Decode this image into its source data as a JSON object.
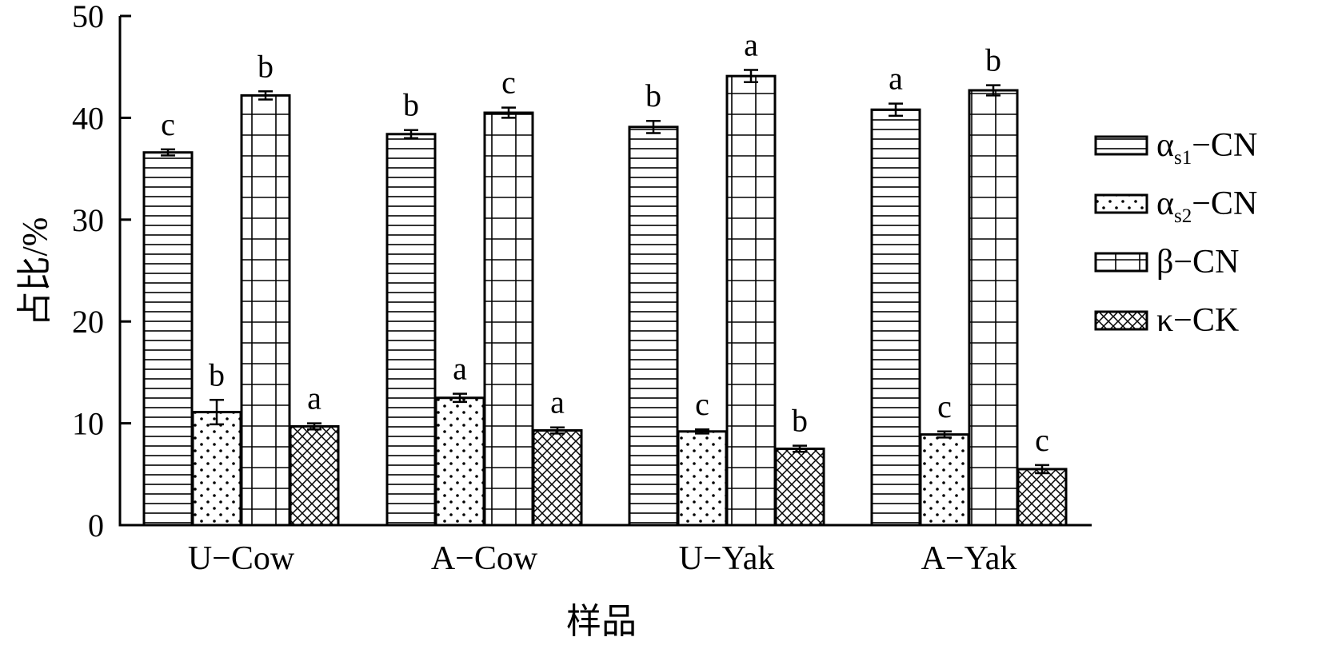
{
  "chart_data": {
    "type": "bar",
    "title": "",
    "xlabel": "样品",
    "ylabel": "占比/%",
    "ylim": [
      0,
      50
    ],
    "yticks": [
      0,
      10,
      20,
      30,
      40,
      50
    ],
    "grid": false,
    "legend_position": "right",
    "categories": [
      "U−Cow",
      "A−Cow",
      "U−Yak",
      "A−Yak"
    ],
    "series": [
      {
        "name": "α s1 −CN",
        "legend": {
          "main": "α",
          "sub": "s1",
          "rest": "−CN"
        },
        "pattern": "horizontal-lines",
        "values": [
          36.6,
          38.4,
          39.1,
          40.8
        ],
        "errors": [
          0.3,
          0.4,
          0.6,
          0.6
        ],
        "letters": [
          "c",
          "b",
          "b",
          "a"
        ]
      },
      {
        "name": "α s2 −CN",
        "legend": {
          "main": "α",
          "sub": "s2",
          "rest": "−CN"
        },
        "pattern": "dots",
        "values": [
          11.1,
          12.5,
          9.2,
          8.9
        ],
        "errors": [
          1.2,
          0.4,
          0.2,
          0.3
        ],
        "letters": [
          "b",
          "a",
          "c",
          "c"
        ]
      },
      {
        "name": "β−CN",
        "legend": {
          "main": "β−CN",
          "sub": "",
          "rest": ""
        },
        "pattern": "grid",
        "values": [
          42.2,
          40.5,
          44.1,
          42.7
        ],
        "errors": [
          0.4,
          0.5,
          0.6,
          0.5
        ],
        "letters": [
          "b",
          "c",
          "a",
          "b"
        ]
      },
      {
        "name": "κ−CK",
        "legend": {
          "main": "κ−CK",
          "sub": "",
          "rest": ""
        },
        "pattern": "crosshatch",
        "values": [
          9.7,
          9.3,
          7.5,
          5.5
        ],
        "errors": [
          0.3,
          0.3,
          0.3,
          0.4
        ],
        "letters": [
          "a",
          "a",
          "b",
          "c"
        ]
      }
    ]
  }
}
